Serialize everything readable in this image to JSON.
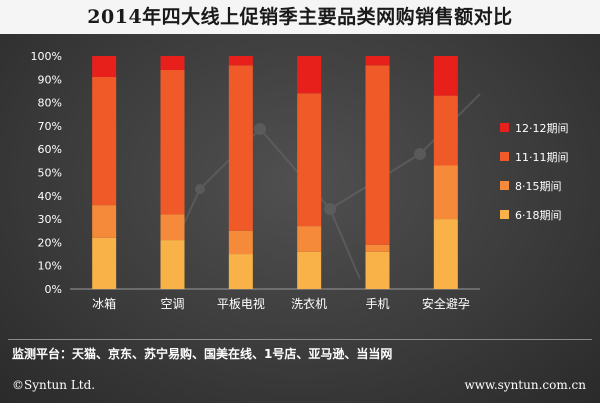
{
  "title": "2014年四大线上促销季主要品类网购销售额对比",
  "footer": {
    "monitor_text": "监测平台：天猫、京东、苏宁易购、国美在线、1号店、亚马逊、当当网",
    "copyright": "©Syntun Ltd.",
    "website": "www.syntun.com.cn"
  },
  "colors": {
    "12-12": "#e8201c",
    "11-11": "#f05a28",
    "8-15": "#f58a3a",
    "6-18": "#f8b248"
  },
  "chart_data": {
    "type": "bar",
    "stacked": true,
    "categories": [
      "冰箱",
      "空调",
      "平板电视",
      "洗衣机",
      "手机",
      "安全避孕"
    ],
    "series": [
      {
        "name": "6·18期间",
        "color_key": "6-18",
        "values": [
          22,
          21,
          15,
          16,
          16,
          30
        ]
      },
      {
        "name": "8·15期间",
        "color_key": "8-15",
        "values": [
          14,
          11,
          10,
          11,
          3,
          23
        ]
      },
      {
        "name": "11·11期间",
        "color_key": "11-11",
        "values": [
          55,
          62,
          71,
          57,
          77,
          30
        ]
      },
      {
        "name": "12·12期间",
        "color_key": "12-12",
        "values": [
          9,
          6,
          4,
          16,
          4,
          17
        ]
      }
    ],
    "legend_order": [
      "12·12期间",
      "11·11期间",
      "8·15期间",
      "6·18期间"
    ],
    "y_ticks": [
      "0%",
      "10%",
      "20%",
      "30%",
      "40%",
      "50%",
      "60%",
      "70%",
      "80%",
      "90%",
      "100%"
    ],
    "ylim": [
      0,
      100
    ],
    "legend_position": "right"
  }
}
